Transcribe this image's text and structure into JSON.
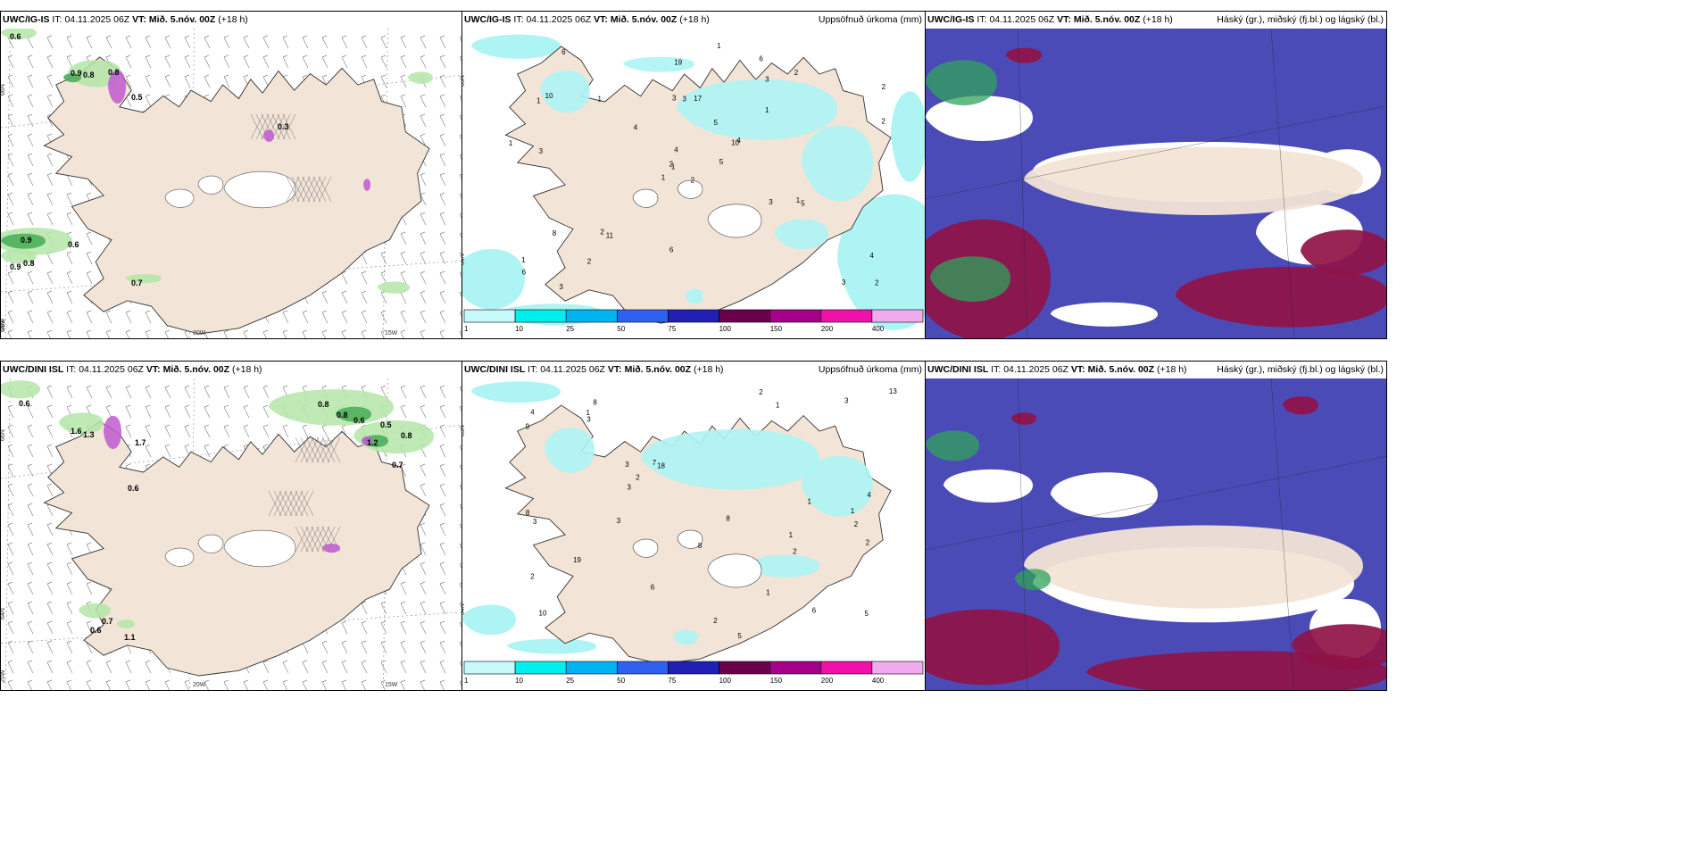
{
  "panels": [
    {
      "model": "UWC/IG-IS",
      "it_label": "IT:",
      "it_value": "04.11.2025 06Z",
      "vt_label": "VT:",
      "vt_value": "Mið. 5.nóv. 00Z",
      "lead": "(+18 h)",
      "title": ""
    },
    {
      "model": "UWC/IG-IS",
      "it_label": "IT:",
      "it_value": "04.11.2025 06Z",
      "vt_label": "VT:",
      "vt_value": "Mið. 5.nóv. 00Z",
      "lead": "(+18 h)",
      "title": "Uppsöfnuð úrkoma (mm)"
    },
    {
      "model": "UWC/IG-IS",
      "it_label": "IT:",
      "it_value": "04.11.2025 06Z",
      "vt_label": "VT:",
      "vt_value": "Mið. 5.nóv. 00Z",
      "lead": "(+18 h)",
      "title": "Háský (gr.), miðský (fj.bl.) og lágský (bl.)"
    },
    {
      "model": "UWC/DINI ISL",
      "it_label": "IT:",
      "it_value": "04.11.2025 06Z",
      "vt_label": "VT:",
      "vt_value": "Mið. 5.nóv. 00Z",
      "lead": "(+18 h)",
      "title": ""
    },
    {
      "model": "UWC/DINI ISL",
      "it_label": "IT:",
      "it_value": "04.11.2025 06Z",
      "vt_label": "VT:",
      "vt_value": "Mið. 5.nóv. 00Z",
      "lead": "(+18 h)",
      "title": "Uppsöfnuð úrkoma (mm)"
    },
    {
      "model": "UWC/DINI ISL",
      "it_label": "IT:",
      "it_value": "04.11.2025 06Z",
      "vt_label": "VT:",
      "vt_value": "Mið. 5.nóv. 00Z",
      "lead": "(+18 h)",
      "title": "Háský (gr.), miðský (fj.bl.) og lágský (bl.)"
    }
  ],
  "axis_labels": {
    "lat_66n": "66N",
    "lat_64n": "64N",
    "lat_65n": "65N",
    "lon_25w": "25W",
    "lon_20w": "20W",
    "lon_15w": "15W"
  },
  "wind_values": {
    "top": [
      "0.6",
      "0.9",
      "0.8",
      "0.8",
      "0.5",
      "0.3",
      "0.9",
      "0.6",
      "0.9",
      "0.8",
      "0.7"
    ],
    "bottom": [
      "0.6",
      "1.6",
      "1.3",
      "1.7",
      "0.6",
      "0.8",
      "0.8",
      "0.6",
      "0.5",
      "0.8",
      "1.2",
      "0.7",
      "0.7",
      "0.6",
      "1.1"
    ]
  },
  "precip_values": {
    "top": [
      "2",
      "1",
      "1",
      "1",
      "10",
      "11",
      "6",
      "17",
      "3",
      "5",
      "6",
      "2",
      "3",
      "2",
      "1",
      "1",
      "3",
      "3",
      "5",
      "8",
      "4",
      "6",
      "2",
      "3",
      "4",
      "5",
      "10",
      "19",
      "1",
      "3",
      "2",
      "2",
      "6",
      "4",
      "1",
      "2",
      "2",
      "3",
      "4",
      "1",
      "1"
    ],
    "bottom": [
      "1",
      "2",
      "10",
      "8",
      "18",
      "6",
      "2",
      "1",
      "3",
      "5",
      "9",
      "8",
      "4",
      "5",
      "6",
      "4",
      "8",
      "8",
      "7",
      "19",
      "13",
      "3",
      "3",
      "2",
      "2",
      "1",
      "2",
      "3",
      "3",
      "1",
      "2",
      "1",
      "2",
      "3",
      "1"
    ]
  },
  "colorbar": {
    "ticks": [
      "1",
      "10",
      "25",
      "50",
      "75",
      "100",
      "150",
      "200",
      "400"
    ],
    "colors": [
      "#c6fafa",
      "#00eeee",
      "#00b4f0",
      "#3060ef",
      "#2020b4",
      "#6a004b",
      "#a4008a",
      "#ef11a9",
      "#f1aaf0"
    ]
  },
  "colors": {
    "land": "#f2e4d6",
    "water": "#ffffff",
    "precip": "#aef4f5",
    "cloud_high": "#4b4bb8",
    "cloud_mid": "#8f1245",
    "cloud_low": "#2fa35a"
  }
}
